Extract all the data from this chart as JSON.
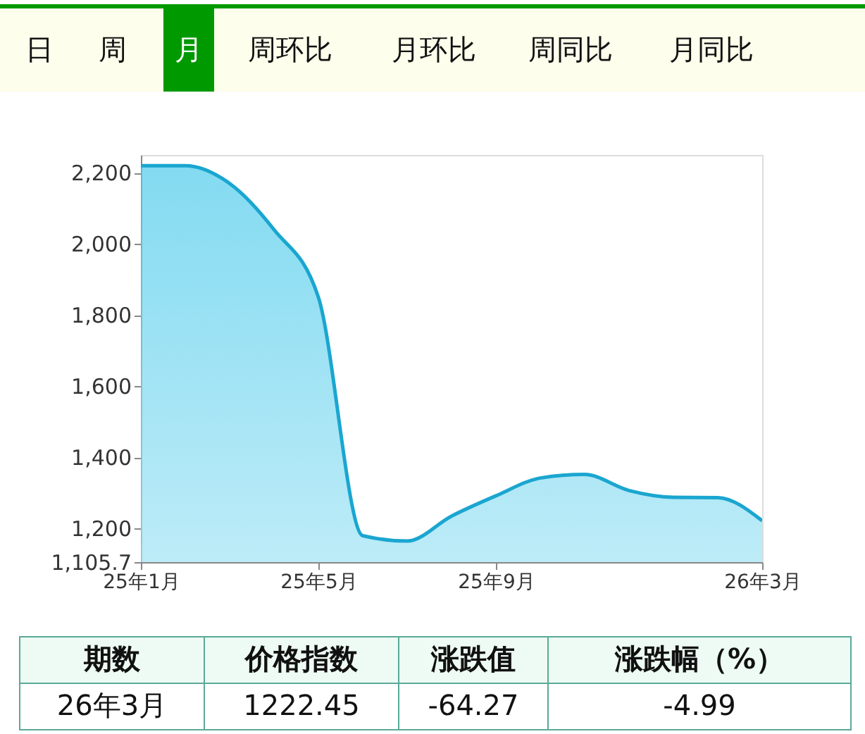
{
  "chart_data": {
    "type": "area",
    "categories": [
      "25年1月",
      null,
      null,
      null,
      "25年5月",
      null,
      null,
      null,
      "25年9月",
      null,
      null,
      null,
      null,
      null,
      "26年3月"
    ],
    "values": [
      2220,
      2220,
      2170,
      2040,
      1850,
      1180,
      1165,
      1235,
      1292,
      1342,
      1352,
      1307,
      1288,
      1287,
      1222
    ],
    "color": "#1aa6d0",
    "ylim": [
      1105.7,
      2250
    ],
    "yticks": [
      {
        "value": 1105.7,
        "label": "1,105.7"
      },
      {
        "value": 1200,
        "label": "1,200"
      },
      {
        "value": 1400,
        "label": "1,400"
      },
      {
        "value": 1600,
        "label": "1,600"
      },
      {
        "value": 1800,
        "label": "1,800"
      },
      {
        "value": 2000,
        "label": "2,000"
      },
      {
        "value": 2200,
        "label": "2,200"
      }
    ],
    "grid": false,
    "annotations": [
      "日",
      "周",
      "月",
      "周环比",
      "月环比",
      "周同比",
      "月同比",
      "期数",
      "价格指数",
      "涨跌值",
      "涨跌幅（%）",
      "26年3月",
      "1222.45",
      "-64.27",
      "-4.99"
    ]
  }
}
